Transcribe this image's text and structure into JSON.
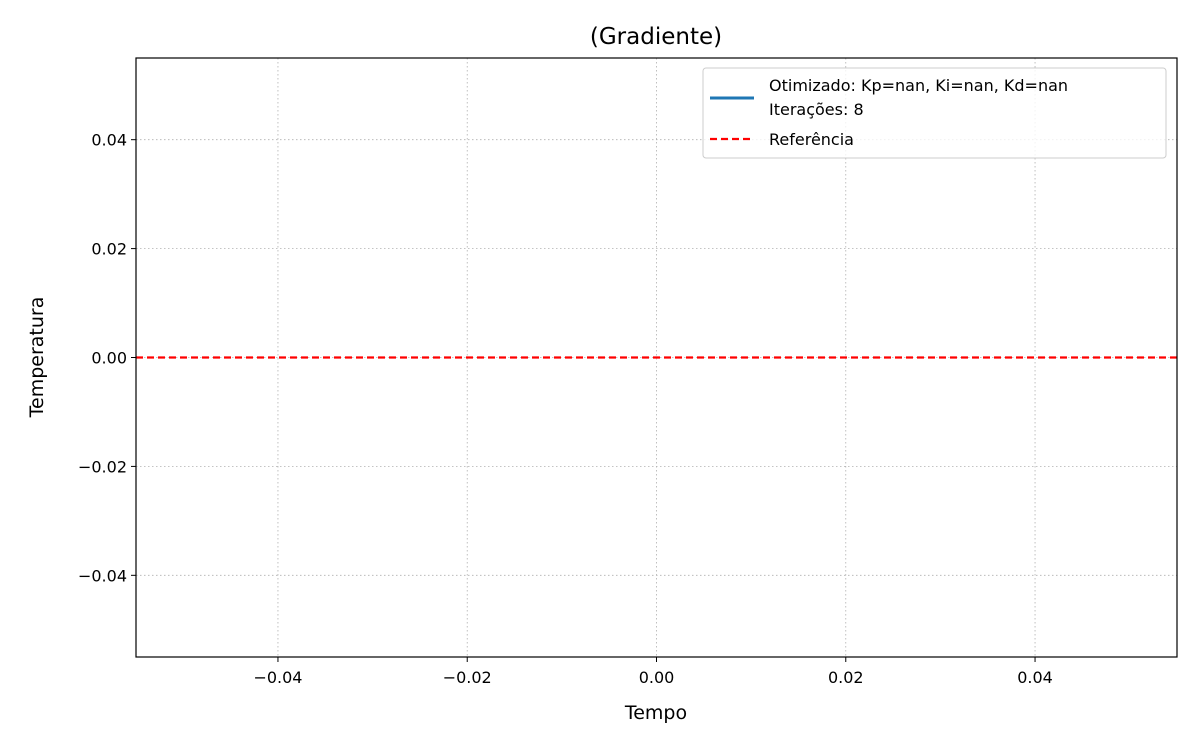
{
  "chart_data": {
    "type": "line",
    "title": "(Gradiente)",
    "xlabel": "Tempo",
    "ylabel": "Temperatura",
    "xlim": [
      -0.055,
      0.055
    ],
    "ylim": [
      -0.055,
      0.055
    ],
    "xticks": [
      -0.04,
      -0.02,
      0.0,
      0.02,
      0.04
    ],
    "xtick_labels": [
      "−0.04",
      "−0.02",
      "0.00",
      "0.02",
      "0.04"
    ],
    "yticks": [
      0.04,
      0.02,
      0.0,
      -0.02,
      -0.04
    ],
    "ytick_labels": [
      "0.04",
      "0.02",
      "0.00",
      "−0.02",
      "−0.04"
    ],
    "grid": true,
    "legend_position": "top-right",
    "series": [
      {
        "name": "Otimizado: Kp=nan, Ki=nan, Kd=nan",
        "name_line2": "Iterações: 8",
        "style": "solid",
        "color": "#1f77b4",
        "x": [],
        "y": []
      },
      {
        "name": "Referência",
        "style": "dashed",
        "color": "#ff0000",
        "type": "hline",
        "y": 0.0
      }
    ]
  }
}
